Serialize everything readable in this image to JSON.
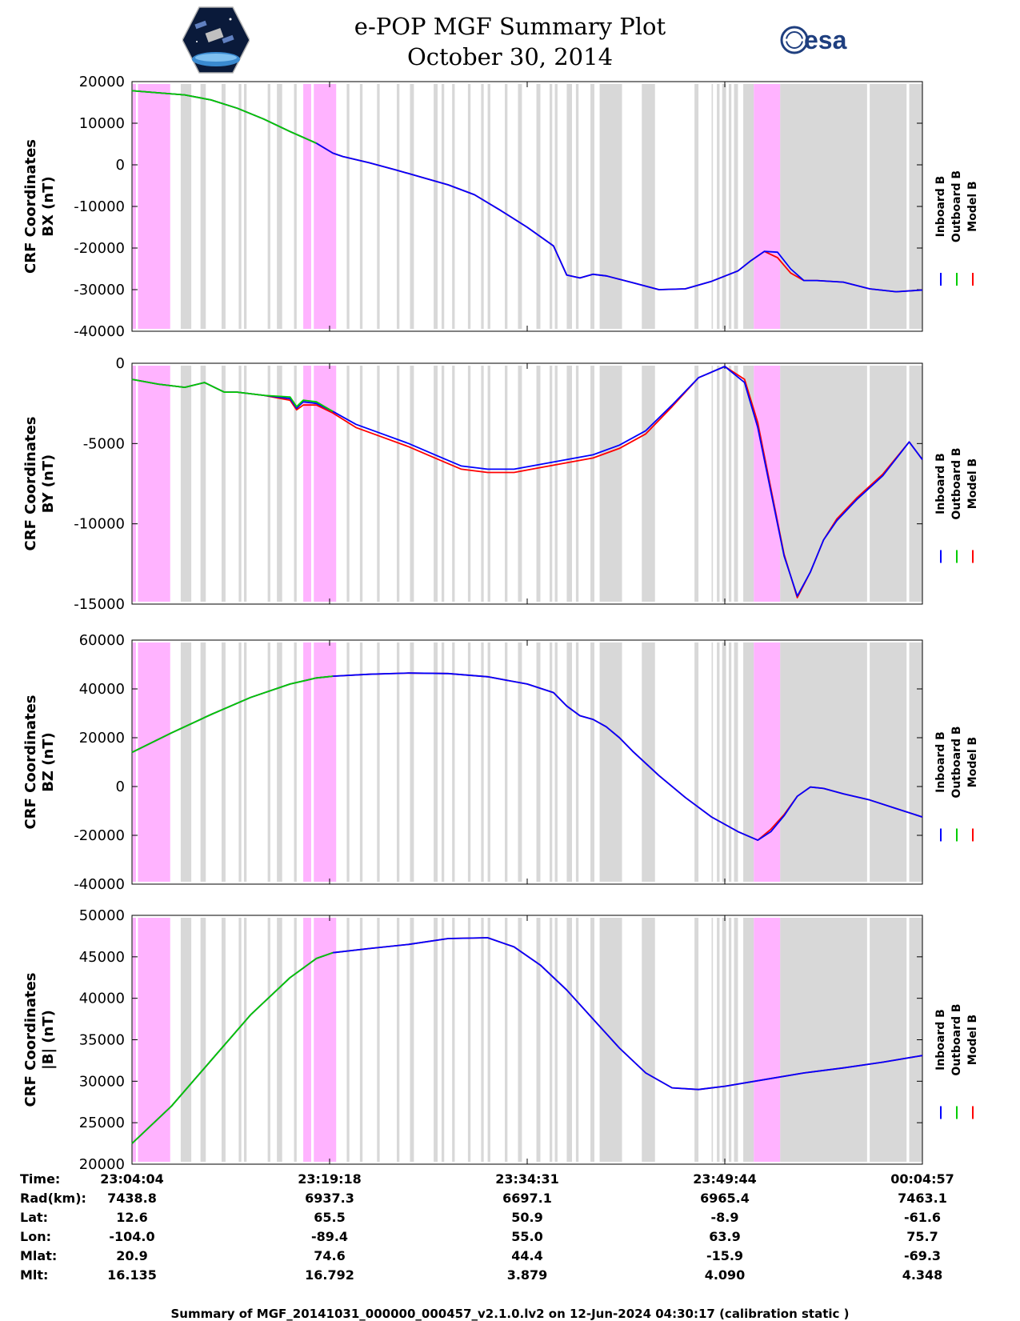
{
  "header": {
    "title_line1": "e-POP MGF Summary Plot",
    "title_line2": "October 30, 2014",
    "left_logo": "cassiope-mission-logo",
    "right_logo": "esa-logo",
    "right_logo_text": "esa"
  },
  "legend": [
    "Inboard B",
    "Outboard B",
    "Model B"
  ],
  "colors": {
    "inboard": "#0000ff",
    "outboard": "#00cc00",
    "model": "#ff0000",
    "gray_band": "#d8d8d8",
    "pink_band": "#ffb3ff"
  },
  "chart_data": [
    {
      "type": "line",
      "ylabel_line1": "CRF Coordinates",
      "ylabel_line2": "BX (nT)",
      "ylim": [
        -40000,
        20000
      ],
      "yticks": [
        20000,
        10000,
        0,
        -10000,
        -20000,
        -30000,
        -40000
      ],
      "ytick_labels": [
        "20000",
        "10000",
        "0",
        "-10000",
        "-20000",
        "-30000",
        "-40000"
      ],
      "x": [
        0,
        2,
        4,
        6,
        8,
        10,
        12,
        14,
        15.25,
        16,
        18,
        20,
        22,
        24,
        26,
        28,
        30,
        32,
        32.5,
        33,
        34,
        35,
        36,
        38,
        40,
        42,
        44,
        46,
        47,
        48,
        49,
        50,
        51,
        52,
        54,
        56,
        58,
        60
      ],
      "inboard": [
        17800,
        17300,
        16800,
        15600,
        13600,
        11000,
        8000,
        5200,
        2800,
        2000,
        500,
        -1200,
        -3000,
        -4800,
        -7200,
        -11000,
        -15000,
        -19500,
        -23000,
        -26500,
        -27200,
        -26300,
        -26700,
        -28300,
        -30000,
        -29800,
        -28000,
        -25500,
        -23000,
        -20800,
        -21000,
        -25000,
        -27800,
        -27800,
        -28200,
        -29800,
        -30500,
        -30100
      ],
      "outboard": [
        17800,
        17300,
        16800,
        15600,
        13600,
        11000,
        8000,
        5200,
        null,
        null,
        null,
        null,
        null,
        null,
        null,
        null,
        null,
        null,
        null,
        null,
        null,
        null,
        null,
        null,
        null,
        null,
        null,
        null,
        null,
        null,
        null,
        null,
        null,
        null,
        null,
        null,
        null,
        null
      ],
      "model": [
        17800,
        17300,
        16800,
        15600,
        13600,
        11000,
        8000,
        5200,
        2800,
        2000,
        500,
        -1200,
        -3000,
        -4800,
        -7200,
        -11000,
        -15000,
        -19500,
        -23000,
        -26500,
        -27200,
        -26300,
        -26700,
        -28300,
        -30000,
        -29800,
        -28000,
        -25500,
        -23000,
        -20800,
        -22300,
        -26000,
        -27800,
        -27800,
        -28200,
        -29800,
        -30500,
        -30100
      ]
    },
    {
      "type": "line",
      "ylabel_line1": "CRF Coordinates",
      "ylabel_line2": "BY (nT)",
      "ylim": [
        -15000,
        0
      ],
      "yticks": [
        0,
        -5000,
        -10000,
        -15000
      ],
      "ytick_labels": [
        "0",
        "-5000",
        "-10000",
        "-15000"
      ],
      "x": [
        0,
        2,
        4,
        5.5,
        6.5,
        7,
        8,
        10,
        12,
        12.5,
        13,
        14,
        15.25,
        17,
        19,
        21,
        23,
        25,
        27,
        29,
        31,
        33,
        35,
        37,
        39,
        41,
        43,
        45,
        46.5,
        47.5,
        48.5,
        49.5,
        50.5,
        51.5,
        52.5,
        53.5,
        55,
        57,
        59,
        60
      ],
      "inboard": [
        -1000,
        -1300,
        -1500,
        -1200,
        -1600,
        -1800,
        -1800,
        -2000,
        -2200,
        -2800,
        -2400,
        -2500,
        -3000,
        -3800,
        -4400,
        -5000,
        -5700,
        -6400,
        -6600,
        -6600,
        -6300,
        -6000,
        -5700,
        -5100,
        -4200,
        -2600,
        -900,
        -200,
        -1200,
        -4000,
        -8000,
        -12000,
        -14500,
        -13000,
        -11000,
        -9800,
        -8500,
        -7000,
        -4900,
        -6000
      ],
      "outboard": [
        -1000,
        -1300,
        -1500,
        -1200,
        -1600,
        -1800,
        -1800,
        -2000,
        -2100,
        -2700,
        -2300,
        -2400,
        -3000,
        null,
        null,
        null,
        null,
        null,
        null,
        null,
        null,
        null,
        null,
        null,
        null,
        null,
        null,
        null,
        null,
        null,
        null,
        null,
        null,
        null,
        null,
        null,
        null,
        null,
        null,
        null
      ],
      "model": [
        -1000,
        -1300,
        -1500,
        -1200,
        -1600,
        -1800,
        -1800,
        -2000,
        -2300,
        -2900,
        -2600,
        -2600,
        -3100,
        -4000,
        -4600,
        -5200,
        -5900,
        -6600,
        -6800,
        -6800,
        -6500,
        -6200,
        -5900,
        -5300,
        -4400,
        -2700,
        -900,
        -200,
        -1000,
        -3700,
        -7800,
        -11900,
        -14600,
        -13000,
        -11000,
        -9700,
        -8400,
        -6900,
        -4900,
        -6000
      ]
    },
    {
      "type": "line",
      "ylabel_line1": "CRF Coordinates",
      "ylabel_line2": "BZ (nT)",
      "ylim": [
        -40000,
        60000
      ],
      "yticks": [
        60000,
        40000,
        20000,
        0,
        -20000,
        -40000
      ],
      "ytick_labels": [
        "60000",
        "40000",
        "20000",
        "0",
        "-20000",
        "-40000"
      ],
      "x": [
        0,
        3,
        6,
        9,
        12,
        14,
        15.25,
        18,
        21,
        24,
        27,
        30,
        32,
        33,
        34,
        35,
        36,
        37,
        38,
        40,
        42,
        44,
        46,
        47.5,
        48.5,
        49.5,
        50.5,
        51.5,
        52.5,
        54,
        56,
        58,
        60
      ],
      "inboard": [
        14000,
        22000,
        29500,
        36500,
        42000,
        44500,
        45200,
        46000,
        46500,
        46300,
        45000,
        42000,
        38500,
        33000,
        29000,
        27500,
        24500,
        20000,
        14500,
        4500,
        -4500,
        -12500,
        -18500,
        -22000,
        -18500,
        -12000,
        -4000,
        -200,
        -800,
        -3000,
        -5500,
        -9000,
        -12500
      ],
      "outboard": [
        14000,
        22000,
        29500,
        36500,
        42000,
        44500,
        45200,
        null,
        null,
        null,
        null,
        null,
        null,
        null,
        null,
        null,
        null,
        null,
        null,
        null,
        null,
        null,
        null,
        null,
        null,
        null,
        null,
        null,
        null,
        null,
        null,
        null,
        null
      ],
      "model": [
        14000,
        22000,
        29500,
        36500,
        42000,
        44500,
        45200,
        46000,
        46500,
        46300,
        45000,
        42000,
        38500,
        33000,
        29000,
        27500,
        24500,
        20000,
        14500,
        4500,
        -4500,
        -12500,
        -18500,
        -22000,
        -17500,
        -11500,
        -4000,
        -200,
        -800,
        -3000,
        -5500,
        -9000,
        -12500
      ]
    },
    {
      "type": "line",
      "ylabel_line1": "CRF Coordinates",
      "ylabel_line2": "|B| (nT)",
      "ylim": [
        20000,
        50000
      ],
      "yticks": [
        50000,
        45000,
        40000,
        35000,
        30000,
        25000,
        20000
      ],
      "ytick_labels": [
        "50000",
        "45000",
        "40000",
        "35000",
        "30000",
        "25000",
        "20000"
      ],
      "x": [
        0,
        3,
        6,
        9,
        12,
        14,
        15.25,
        18,
        21,
        24,
        27,
        29,
        31,
        33,
        35,
        37,
        39,
        41,
        43,
        45,
        48,
        51,
        54,
        57,
        60
      ],
      "inboard": [
        22500,
        27000,
        32500,
        38000,
        42500,
        44800,
        45500,
        46000,
        46500,
        47200,
        47300,
        46200,
        44000,
        41000,
        37500,
        34000,
        31000,
        29200,
        29000,
        29400,
        30200,
        31000,
        31600,
        32300,
        33100
      ],
      "outboard": [
        22500,
        27000,
        32500,
        38000,
        42500,
        44800,
        45500,
        null,
        null,
        null,
        null,
        null,
        null,
        null,
        null,
        null,
        null,
        null,
        null,
        null,
        null,
        null,
        null,
        null,
        null
      ],
      "model": [
        22500,
        27000,
        32500,
        38000,
        42500,
        44800,
        45500,
        46000,
        46500,
        47200,
        47300,
        46200,
        44000,
        41000,
        37500,
        34000,
        31000,
        29200,
        29000,
        29400,
        30200,
        31000,
        31600,
        32300,
        33100
      ]
    }
  ],
  "x_axis": {
    "xlim": [
      0,
      60
    ],
    "ticks_minutes": [
      0,
      15,
      30,
      45,
      60
    ]
  },
  "pink_bands": [
    [
      0.05,
      0.3
    ],
    [
      0.45,
      2.9
    ],
    [
      13,
      13.6
    ],
    [
      13.8,
      15.5
    ],
    [
      47.2,
      49.2
    ]
  ],
  "gray_bands": [
    [
      3.7,
      4.5
    ],
    [
      5.2,
      5.6
    ],
    [
      6.8,
      7.1
    ],
    [
      8.1,
      8.3
    ],
    [
      8.5,
      8.7
    ],
    [
      10.3,
      10.5
    ],
    [
      11.0,
      11.4
    ],
    [
      12.3,
      12.5
    ],
    [
      16.3,
      16.5
    ],
    [
      17.3,
      17.5
    ],
    [
      18.6,
      18.8
    ],
    [
      20.1,
      20.3
    ],
    [
      21.1,
      21.4
    ],
    [
      22.9,
      23.2
    ],
    [
      23.5,
      23.7
    ],
    [
      24.3,
      24.5
    ],
    [
      25.5,
      25.7
    ],
    [
      26.5,
      26.7
    ],
    [
      27.0,
      27.2
    ],
    [
      28.3,
      28.5
    ],
    [
      29.3,
      29.6
    ],
    [
      30.7,
      31.0
    ],
    [
      31.7,
      31.9
    ],
    [
      32.1,
      32.3
    ],
    [
      33.0,
      33.4
    ],
    [
      33.7,
      33.9
    ],
    [
      34.8,
      35.1
    ],
    [
      35.5,
      37.2
    ],
    [
      38.7,
      39.7
    ],
    [
      42.7,
      43.0
    ],
    [
      44.0,
      44.1
    ],
    [
      44.4,
      44.6
    ],
    [
      44.8,
      45.1
    ],
    [
      45.3,
      45.5
    ],
    [
      45.7,
      46.0
    ],
    [
      46.4,
      47.2
    ],
    [
      49.2,
      55.8
    ],
    [
      56.0,
      58.8
    ],
    [
      59.0,
      60
    ]
  ],
  "ephemeris": {
    "row_labels": [
      "Time:",
      "Rad(km):",
      "Lat:",
      "Lon:",
      "Mlat:",
      "Mlt:"
    ],
    "columns": [
      [
        "23:04:04",
        "7438.8",
        "12.6",
        "-104.0",
        "20.9",
        "16.135"
      ],
      [
        "23:19:18",
        "6937.3",
        "65.5",
        "-89.4",
        "74.6",
        "16.792"
      ],
      [
        "23:34:31",
        "6697.1",
        "50.9",
        "55.0",
        "44.4",
        "3.879"
      ],
      [
        "23:49:44",
        "6965.4",
        "-8.9",
        "63.9",
        "-15.9",
        "4.090"
      ],
      [
        "00:04:57",
        "7463.1",
        "-61.6",
        "75.7",
        "-69.3",
        "4.348"
      ]
    ]
  },
  "footer": "Summary of MGF_20141031_000000_000457_v2.1.0.lv2 on 12-Jun-2024 04:30:17 (calibration static )"
}
